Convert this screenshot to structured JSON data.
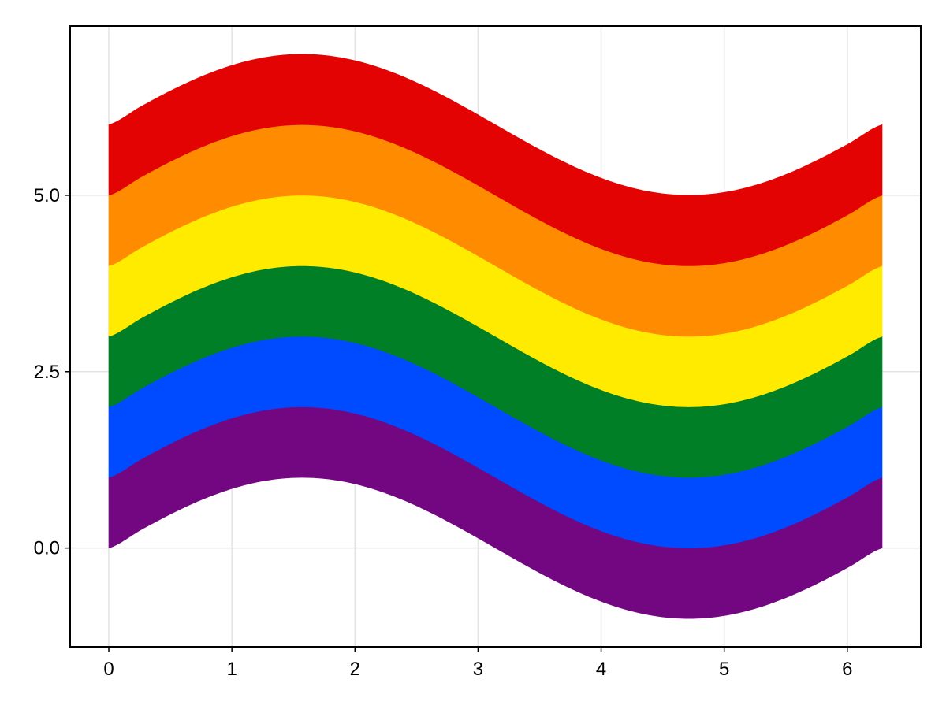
{
  "chart_data": {
    "type": "area",
    "title": "",
    "xlabel": "",
    "ylabel": "",
    "xlim": [
      -0.314,
      6.597
    ],
    "ylim": [
      -1.4,
      7.4
    ],
    "grid": true,
    "x_ticks": [
      0,
      1,
      2,
      3,
      4,
      5,
      6
    ],
    "x_tick_labels": [
      "0",
      "1",
      "2",
      "3",
      "4",
      "5",
      "6"
    ],
    "y_ticks": [
      0.0,
      2.5,
      5.0
    ],
    "y_tick_labels": [
      "0.0",
      "2.5",
      "5.0"
    ],
    "x": [
      0.0,
      0.2618,
      0.5236,
      0.7854,
      1.0472,
      1.309,
      1.5708,
      1.8326,
      2.0944,
      2.3562,
      2.618,
      2.8798,
      3.1416,
      3.4034,
      3.6652,
      3.927,
      4.1888,
      4.4506,
      4.7124,
      4.9742,
      5.236,
      5.4978,
      5.7596,
      6.0214,
      6.2832
    ],
    "bands": [
      {
        "color": "#730782",
        "lower_offset": 0,
        "upper_offset": 1
      },
      {
        "color": "#004aff",
        "lower_offset": 1,
        "upper_offset": 2
      },
      {
        "color": "#007f26",
        "lower_offset": 2,
        "upper_offset": 3
      },
      {
        "color": "#ffeb00",
        "lower_offset": 3,
        "upper_offset": 4
      },
      {
        "color": "#ff8c00",
        "lower_offset": 4,
        "upper_offset": 5
      },
      {
        "color": "#e30303",
        "lower_offset": 5,
        "upper_offset": 6
      }
    ],
    "base_curve": [
      0.0,
      0.2588,
      0.5,
      0.7071,
      0.866,
      0.9659,
      1.0,
      0.9659,
      0.866,
      0.7071,
      0.5,
      0.2588,
      0.0,
      -0.2588,
      -0.5,
      -0.7071,
      -0.866,
      -0.9659,
      -1.0,
      -0.9659,
      -0.866,
      -0.7071,
      -0.5,
      -0.2588,
      0.0
    ]
  }
}
